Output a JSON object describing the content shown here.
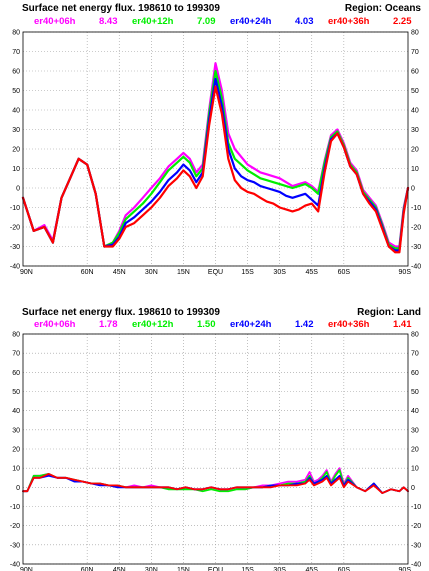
{
  "chart_data": [
    {
      "type": "line",
      "title": "Surface net energy flux. 198610 to 199309",
      "region": "Region: Oceans",
      "legend": [
        {
          "name": "er40+06h",
          "value": "8.43",
          "color": "#ff00ff"
        },
        {
          "name": "er40+12h",
          "value": "7.09",
          "color": "#00ee00"
        },
        {
          "name": "er40+24h",
          "value": "4.03",
          "color": "#0000ff"
        },
        {
          "name": "er40+36h",
          "value": "2.25",
          "color": "#ff0000"
        }
      ],
      "xticks": [
        "90N",
        "60N",
        "45N",
        "30N",
        "15N",
        "EQU",
        "15S",
        "30S",
        "45S",
        "60S",
        "90S"
      ],
      "xtick_values": [
        -90,
        -60,
        -45,
        -30,
        -15,
        0,
        15,
        30,
        45,
        60,
        90
      ],
      "yticks": [
        "-40",
        "-30",
        "-20",
        "-10",
        "0",
        "10",
        "20",
        "30",
        "40",
        "50",
        "60",
        "70",
        "80"
      ],
      "ylim": [
        -40,
        80
      ],
      "xlim": [
        -90,
        90
      ],
      "grid": true,
      "x": [
        -90,
        -85,
        -80,
        -76,
        -72,
        -68,
        -64,
        -60,
        -56,
        -52,
        -48,
        -45,
        -42,
        -38,
        -34,
        -30,
        -26,
        -22,
        -18,
        -15,
        -12,
        -9,
        -6,
        -3,
        0,
        3,
        6,
        9,
        12,
        15,
        18,
        21,
        24,
        27,
        30,
        33,
        36,
        39,
        42,
        45,
        48,
        51,
        54,
        57,
        60,
        63,
        66,
        69,
        72,
        75,
        78,
        81,
        84,
        86,
        88,
        90
      ],
      "series": [
        {
          "name": "er40+06h",
          "color": "#ff00ff",
          "values": [
            -5,
            -22,
            -19,
            -27,
            -5,
            5,
            15,
            12,
            -3,
            -30,
            -28,
            -22,
            -14,
            -10,
            -5,
            0,
            5,
            11,
            15,
            18,
            15,
            8,
            12,
            40,
            64,
            50,
            28,
            20,
            16,
            12,
            10,
            8,
            7,
            6,
            5,
            3,
            1,
            2,
            3,
            1,
            -2,
            14,
            27,
            30,
            23,
            13,
            9,
            -1,
            -5,
            -9,
            -18,
            -28,
            -30,
            -30,
            -10,
            0
          ]
        },
        {
          "name": "er40+12h",
          "color": "#00ee00",
          "values": [
            -5,
            -22,
            -20,
            -28,
            -5,
            5,
            15,
            12,
            -3,
            -30,
            -28,
            -23,
            -16,
            -12,
            -8,
            -3,
            3,
            9,
            13,
            16,
            13,
            6,
            10,
            38,
            60,
            46,
            23,
            15,
            12,
            9,
            7,
            5,
            4,
            3,
            2,
            1,
            0,
            1,
            2,
            0,
            -3,
            13,
            26,
            29,
            22,
            12,
            8,
            -2,
            -6,
            -10,
            -19,
            -29,
            -31,
            -31,
            -11,
            0
          ]
        },
        {
          "name": "er40+24h",
          "color": "#0000ff",
          "values": [
            -5,
            -22,
            -20,
            -28,
            -5,
            5,
            15,
            12,
            -3,
            -30,
            -29,
            -25,
            -18,
            -15,
            -11,
            -7,
            -2,
            4,
            8,
            12,
            9,
            3,
            8,
            35,
            56,
            42,
            20,
            10,
            6,
            4,
            3,
            1,
            0,
            -1,
            -2,
            -4,
            -5,
            -4,
            -3,
            -6,
            -9,
            10,
            25,
            28,
            21,
            11,
            7,
            -3,
            -7,
            -11,
            -20,
            -30,
            -32,
            -32,
            -12,
            0
          ]
        },
        {
          "name": "er40+36h",
          "color": "#ff0000",
          "values": [
            -5,
            -22,
            -20,
            -28,
            -5,
            5,
            15,
            12,
            -3,
            -30,
            -30,
            -26,
            -20,
            -18,
            -14,
            -10,
            -5,
            1,
            5,
            9,
            6,
            0,
            6,
            32,
            52,
            38,
            15,
            4,
            0,
            -2,
            -3,
            -5,
            -7,
            -8,
            -10,
            -11,
            -12,
            -11,
            -9,
            -8,
            -12,
            8,
            24,
            28,
            21,
            11,
            7,
            -3,
            -8,
            -12,
            -21,
            -30,
            -33,
            -33,
            -13,
            0
          ]
        }
      ]
    },
    {
      "type": "line",
      "title": "Surface net energy flux. 198610 to 199309",
      "region": "Region: Land",
      "legend": [
        {
          "name": "er40+06h",
          "value": "1.78",
          "color": "#ff00ff"
        },
        {
          "name": "er40+12h",
          "value": "1.50",
          "color": "#00ee00"
        },
        {
          "name": "er40+24h",
          "value": "1.42",
          "color": "#0000ff"
        },
        {
          "name": "er40+36h",
          "value": "1.41",
          "color": "#ff0000"
        }
      ],
      "xticks": [
        "90N",
        "60N",
        "45N",
        "30N",
        "15N",
        "EQU",
        "15S",
        "30S",
        "45S",
        "60S",
        "90S"
      ],
      "xtick_values": [
        -90,
        -60,
        -45,
        -30,
        -15,
        0,
        15,
        30,
        45,
        60,
        90
      ],
      "yticks": [
        "-40",
        "-30",
        "-20",
        "-10",
        "0",
        "10",
        "20",
        "30",
        "40",
        "50",
        "60",
        "70",
        "80"
      ],
      "ylim": [
        -40,
        80
      ],
      "xlim": [
        -90,
        90
      ],
      "grid": true,
      "x": [
        -90,
        -88,
        -85,
        -82,
        -78,
        -74,
        -70,
        -66,
        -62,
        -58,
        -54,
        -50,
        -46,
        -42,
        -38,
        -34,
        -30,
        -26,
        -22,
        -18,
        -14,
        -10,
        -6,
        -2,
        2,
        6,
        10,
        14,
        18,
        22,
        26,
        30,
        34,
        38,
        42,
        44,
        46,
        48,
        50,
        52,
        54,
        56,
        58,
        60,
        62,
        66,
        70,
        74,
        78,
        82,
        86,
        88,
        90
      ],
      "series": [
        {
          "name": "er40+06h",
          "color": "#ff00ff",
          "values": [
            -2,
            -2,
            6,
            6,
            7,
            5,
            5,
            4,
            3,
            2,
            2,
            1,
            1,
            0,
            1,
            0,
            1,
            0,
            0,
            -1,
            0,
            -1,
            -1,
            0,
            -1,
            -1,
            0,
            -1,
            0,
            1,
            1,
            2,
            3,
            3,
            4,
            8,
            3,
            4,
            6,
            9,
            3,
            7,
            10,
            2,
            6,
            0,
            -2,
            2,
            -3,
            -1,
            -2,
            0,
            -2
          ]
        },
        {
          "name": "er40+12h",
          "color": "#00ee00",
          "values": [
            -2,
            -2,
            6,
            6,
            7,
            5,
            5,
            4,
            3,
            2,
            2,
            1,
            1,
            0,
            0,
            0,
            0,
            0,
            -1,
            -1,
            -1,
            -1,
            -2,
            -1,
            -2,
            -2,
            -1,
            -1,
            0,
            0,
            1,
            1,
            2,
            2,
            3,
            6,
            2,
            3,
            5,
            8,
            2,
            6,
            9,
            1,
            5,
            0,
            -2,
            2,
            -3,
            -1,
            -2,
            0,
            -2
          ]
        },
        {
          "name": "er40+24h",
          "color": "#0000ff",
          "values": [
            -2,
            -2,
            5,
            5,
            6,
            5,
            5,
            3,
            3,
            2,
            1,
            1,
            0,
            0,
            0,
            0,
            0,
            0,
            0,
            -1,
            0,
            -1,
            -1,
            0,
            -1,
            -1,
            0,
            0,
            0,
            0,
            1,
            1,
            1,
            2,
            2,
            5,
            2,
            3,
            4,
            6,
            2,
            4,
            6,
            1,
            4,
            0,
            -2,
            2,
            -3,
            -1,
            -2,
            0,
            -2
          ]
        },
        {
          "name": "er40+36h",
          "color": "#ff0000",
          "values": [
            -2,
            -2,
            5,
            5,
            7,
            5,
            5,
            4,
            3,
            2,
            2,
            1,
            1,
            0,
            0,
            0,
            0,
            0,
            0,
            -1,
            0,
            -1,
            -1,
            0,
            -1,
            -1,
            0,
            0,
            0,
            0,
            0,
            1,
            1,
            1,
            2,
            4,
            1,
            2,
            3,
            5,
            1,
            3,
            5,
            0,
            3,
            0,
            -2,
            1,
            -3,
            -1,
            -2,
            0,
            -2
          ]
        }
      ]
    }
  ]
}
